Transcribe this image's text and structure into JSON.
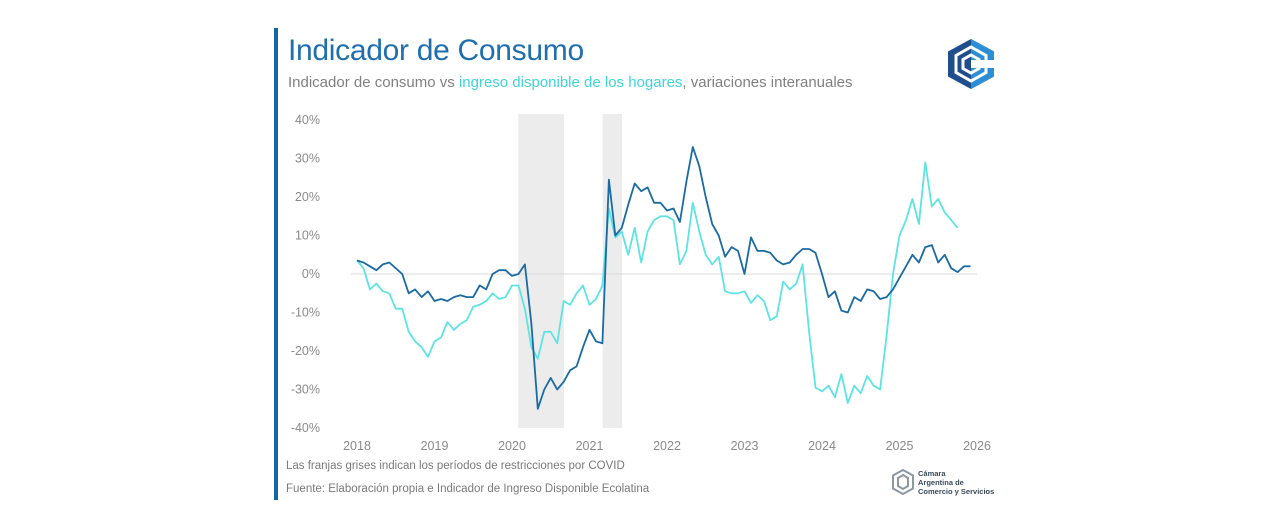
{
  "header": {
    "title": "Indicador de Consumo",
    "subtitle_prefix": "Indicador de consumo vs ",
    "subtitle_highlight": "ingreso disponible de los hogares",
    "subtitle_suffix": ", variaciones interanuales"
  },
  "colors": {
    "accent": "#1565a8",
    "series_consumo": "#1a6aa3",
    "series_ingreso": "#5ee3e3",
    "shade": "#ececec"
  },
  "footer": {
    "note": "Las franjas grises indican los períodos de restricciones por COVID",
    "source": "Fuente: Elaboración propia e Indicador de Ingreso Disponible Ecolatina"
  },
  "logo_bottom": {
    "line1": "Cámara",
    "line2": "Argentina de",
    "line3": "Comercio y Servicios"
  },
  "chart_data": {
    "type": "line",
    "title": "Indicador de Consumo",
    "xlabel": "",
    "ylabel": "",
    "xlim": [
      2018,
      2026
    ],
    "ylim": [
      -40,
      40
    ],
    "x_ticks": [
      "2018",
      "2019",
      "2020",
      "2021",
      "2022",
      "2023",
      "2024",
      "2025",
      "2026"
    ],
    "y_ticks": [
      "40%",
      "30%",
      "20%",
      "10%",
      "0%",
      "-10%",
      "-20%",
      "-30%",
      "-40%"
    ],
    "y_tick_values": [
      40,
      30,
      20,
      10,
      0,
      -10,
      -20,
      -30,
      -40
    ],
    "shaded_periods": [
      [
        2020.08,
        2020.67
      ],
      [
        2021.17,
        2021.42
      ]
    ],
    "legend": "none",
    "series": [
      {
        "name": "Indicador de consumo",
        "start": 2018.0,
        "step": 0.0833333,
        "values": [
          3.5,
          3,
          2,
          1,
          2.5,
          3,
          1.5,
          0,
          -5,
          -4,
          -6,
          -4.5,
          -7,
          -6.5,
          -7,
          -6,
          -5.5,
          -6,
          -6,
          -3,
          -4,
          0,
          1,
          1,
          -0.5,
          0,
          2.5,
          -13,
          -35,
          -30,
          -27,
          -30,
          -28,
          -25,
          -24,
          -19,
          -14.5,
          -17.5,
          -18,
          24.5,
          10,
          12,
          18,
          23.5,
          21.5,
          22.5,
          18.5,
          18.5,
          16.5,
          17,
          13.5,
          24,
          33,
          28,
          20,
          13,
          10,
          4.5,
          7,
          6,
          0,
          9.5,
          6,
          6,
          5.5,
          3.5,
          2.5,
          3,
          5,
          6.5,
          6.5,
          5.5,
          0,
          -6,
          -4.5,
          -9.5,
          -10,
          -6,
          -7,
          -4,
          -4.5,
          -6.5,
          -6,
          -4,
          -1,
          2,
          5,
          3,
          7,
          7.5,
          3,
          5,
          1.5,
          0.5,
          2,
          2
        ]
      },
      {
        "name": "Ingreso disponible de los hogares",
        "start": 2018.0,
        "step": 0.0833333,
        "values": [
          3.5,
          1.5,
          -4,
          -2.5,
          -4.5,
          -5,
          -9,
          -9,
          -15,
          -17.5,
          -19,
          -21.5,
          -17.5,
          -16.5,
          -12.5,
          -14.5,
          -13,
          -12,
          -8.5,
          -8,
          -7,
          -5,
          -6.5,
          -6,
          -3,
          -3,
          -9,
          -19,
          -22,
          -15,
          -15,
          -18,
          -7,
          -8,
          -5,
          -3,
          -8,
          -6.5,
          -3,
          17,
          9.5,
          11,
          5,
          12,
          3,
          11,
          14,
          15,
          15,
          14,
          2.5,
          6,
          18.5,
          11,
          5,
          2.5,
          4.5,
          -4.5,
          -5,
          -5,
          -4.5,
          -7.5,
          -5.5,
          -7,
          -12,
          -11,
          -2,
          -4,
          -2.5,
          2.5,
          -15,
          -29.5,
          -30.5,
          -29,
          -32,
          -26,
          -33.5,
          -29,
          -31,
          -26.5,
          -29,
          -30,
          -16,
          0,
          10,
          14,
          19.5,
          13,
          29,
          17.5,
          19.5,
          16,
          14,
          12
        ]
      }
    ]
  }
}
